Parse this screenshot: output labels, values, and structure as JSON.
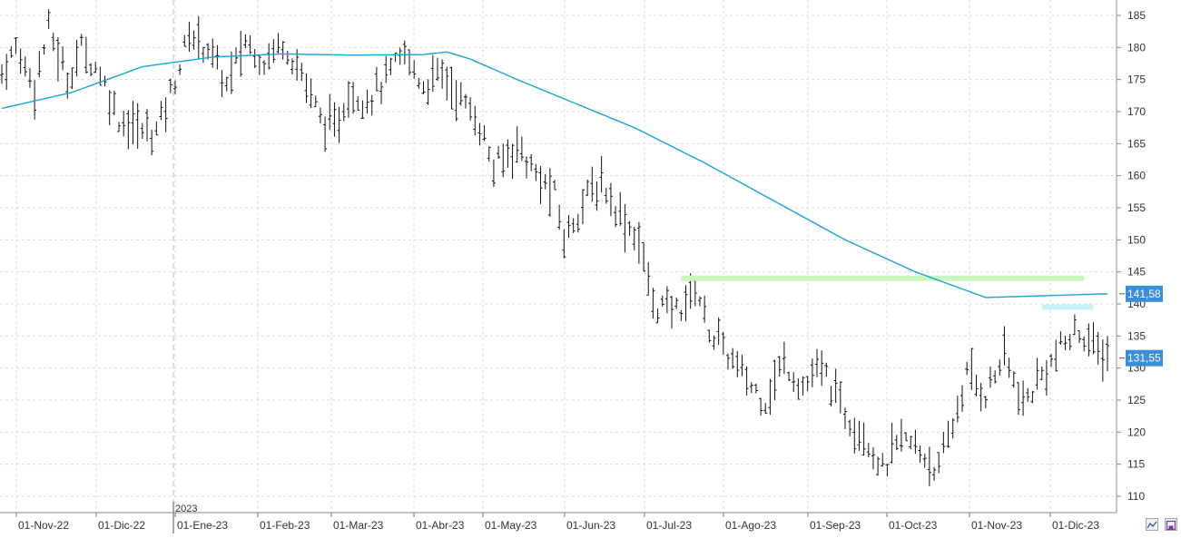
{
  "chart_data": {
    "type": "ohlc",
    "title": "",
    "xlabel": "",
    "ylabel": "",
    "ylim": [
      107,
      188
    ],
    "y_ticks": [
      110,
      115,
      120,
      125,
      130,
      135,
      140,
      145,
      150,
      155,
      160,
      165,
      170,
      175,
      180,
      185
    ],
    "x_ticks": [
      "01-Nov-22",
      "01-Dic-22",
      "01-Ene-23",
      "01-Feb-23",
      "01-Mar-23",
      "01-Abr-23",
      "01-May-23",
      "01-Jun-23",
      "01-Jul-23",
      "01-Ago-23",
      "01-Sep-23",
      "01-Oct-23",
      "01-Nov-23",
      "01-Dic-23"
    ],
    "year_marker": "2023",
    "grid": true,
    "price_path": [
      [
        0,
        176
      ],
      [
        3,
        180
      ],
      [
        7,
        174
      ],
      [
        10,
        183
      ],
      [
        14,
        175
      ],
      [
        17,
        180
      ],
      [
        21,
        176
      ],
      [
        25,
        169
      ],
      [
        30,
        167
      ],
      [
        33,
        167
      ],
      [
        37,
        175
      ],
      [
        40,
        182
      ],
      [
        44,
        180
      ],
      [
        48,
        174
      ],
      [
        52,
        181
      ],
      [
        56,
        178
      ],
      [
        60,
        181
      ],
      [
        64,
        176
      ],
      [
        68,
        169
      ],
      [
        71,
        167
      ],
      [
        74,
        173
      ],
      [
        78,
        172
      ],
      [
        82,
        175
      ],
      [
        86,
        179
      ],
      [
        90,
        174
      ],
      [
        94,
        176
      ],
      [
        98,
        172
      ],
      [
        102,
        168
      ],
      [
        105,
        161
      ],
      [
        110,
        165
      ],
      [
        114,
        160
      ],
      [
        118,
        157
      ],
      [
        120,
        150
      ],
      [
        124,
        156
      ],
      [
        128,
        159
      ],
      [
        132,
        154
      ],
      [
        136,
        150
      ],
      [
        139,
        140
      ],
      [
        143,
        139
      ],
      [
        146,
        140
      ],
      [
        148,
        143
      ],
      [
        151,
        136
      ],
      [
        155,
        132
      ],
      [
        159,
        128
      ],
      [
        163,
        125
      ],
      [
        167,
        131
      ],
      [
        171,
        127
      ],
      [
        175,
        130
      ],
      [
        180,
        123
      ],
      [
        184,
        120
      ],
      [
        188,
        114
      ],
      [
        192,
        119
      ],
      [
        196,
        117
      ],
      [
        200,
        114
      ],
      [
        203,
        121
      ],
      [
        206,
        129
      ],
      [
        210,
        126
      ],
      [
        214,
        132
      ],
      [
        218,
        124
      ],
      [
        222,
        129
      ],
      [
        226,
        133
      ],
      [
        230,
        136
      ],
      [
        233,
        133
      ],
      [
        236,
        132
      ]
    ],
    "series": [
      {
        "name": "",
        "type": "line",
        "color": "#1aa3d4",
        "points": [
          [
            0,
            170.5
          ],
          [
            15,
            173
          ],
          [
            30,
            177
          ],
          [
            45,
            178.5
          ],
          [
            60,
            179
          ],
          [
            75,
            178.8
          ],
          [
            90,
            178.9
          ],
          [
            95,
            179.3
          ],
          [
            100,
            178.2
          ],
          [
            110,
            175
          ],
          [
            120,
            172
          ],
          [
            135,
            167.5
          ],
          [
            150,
            162
          ],
          [
            165,
            156
          ],
          [
            180,
            150
          ],
          [
            195,
            145
          ],
          [
            210,
            141
          ],
          [
            236,
            141.58
          ]
        ]
      }
    ],
    "horizontal_levels": [
      {
        "value": 144,
        "start": 145,
        "end": 231,
        "color": "#c8f5c0"
      },
      {
        "value": 139.5,
        "start": 222,
        "end": 233,
        "color": "#c6f2f7"
      }
    ],
    "price_labels": [
      {
        "value": 141.58,
        "text": "141,58",
        "color": "#3a8fd8"
      },
      {
        "value": 131.55,
        "text": "131,55",
        "color": "#3a8fd8"
      }
    ]
  },
  "ui": {
    "icons": [
      "wave-icon",
      "save-icon"
    ]
  }
}
